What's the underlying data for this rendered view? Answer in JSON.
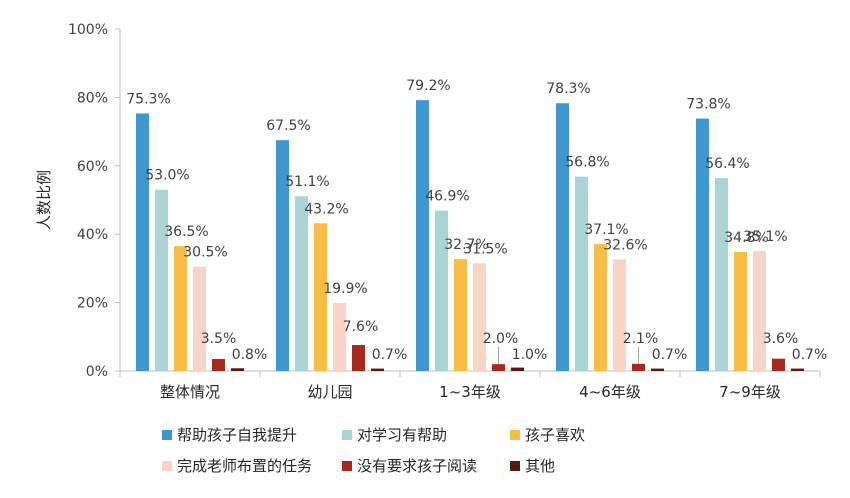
{
  "chart_data": {
    "type": "bar",
    "ylabel": "人数比例",
    "ylim": [
      0,
      100
    ],
    "yticks": [
      "0%",
      "20%",
      "40%",
      "60%",
      "80%",
      "100%"
    ],
    "categories": [
      "整体情况",
      "幼儿园",
      "1~3年级",
      "4~6年级",
      "7~9年级"
    ],
    "series": [
      {
        "name": "帮助孩子自我提升",
        "color": "#3E97D1",
        "values": [
          75.3,
          67.5,
          79.2,
          78.3,
          73.8
        ],
        "labels": [
          "75.3%",
          "67.5%",
          "79.2%",
          "78.3%",
          "73.8%"
        ]
      },
      {
        "name": "对学习有帮助",
        "color": "#A9D4D6",
        "values": [
          53.0,
          51.1,
          46.9,
          56.8,
          56.4
        ],
        "labels": [
          "53.0%",
          "51.1%",
          "46.9%",
          "56.8%",
          "56.4%"
        ]
      },
      {
        "name": "孩子喜欢",
        "color": "#F8BD45",
        "values": [
          36.5,
          43.2,
          32.7,
          37.1,
          34.8
        ],
        "labels": [
          "36.5%",
          "43.2%",
          "32.7%",
          "37.1%",
          "34.8%"
        ]
      },
      {
        "name": "完成老师布置的任务",
        "color": "#F9D3C3",
        "values": [
          30.5,
          19.9,
          31.5,
          32.6,
          35.1
        ],
        "labels": [
          "30.5%",
          "19.9%",
          "31.5%",
          "32.6%",
          "35.1%"
        ]
      },
      {
        "name": "没有要求孩子阅读",
        "color": "#A7281C",
        "values": [
          3.5,
          7.6,
          2.0,
          2.1,
          3.6
        ],
        "labels": [
          "3.5%",
          "7.6%",
          "2.0%",
          "2.1%",
          "3.6%"
        ]
      },
      {
        "name": "其他",
        "color": "#5A1712",
        "values": [
          0.8,
          0.7,
          1.0,
          0.7,
          0.7
        ],
        "labels": [
          "0.8%",
          "0.7%",
          "1.0%",
          "0.7%",
          "0.7%"
        ]
      }
    ],
    "grid": false,
    "legend_position": "bottom"
  }
}
